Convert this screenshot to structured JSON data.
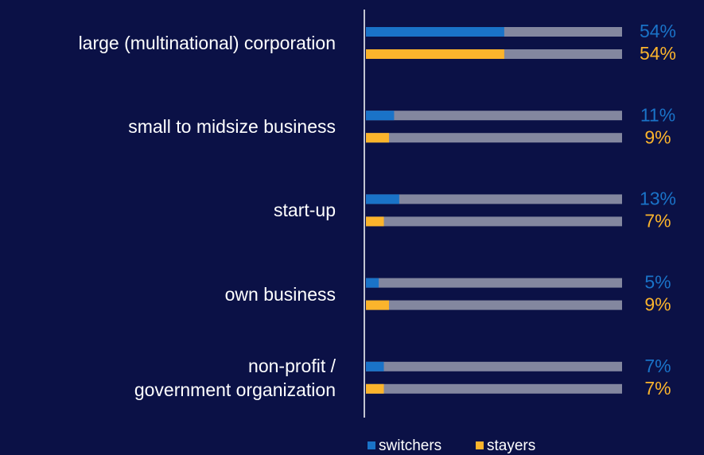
{
  "chart_data": {
    "type": "bar",
    "categories": [
      "large (multinational) corporation",
      "small to midsize business",
      "start-up",
      "own business",
      "non-profit /\ngovernment organization"
    ],
    "series": [
      {
        "name": "switchers",
        "color": "#1a73c8",
        "values": [
          54,
          11,
          13,
          5,
          7
        ],
        "value_labels": [
          "54%",
          "11%",
          "13%",
          "5%",
          "7%"
        ]
      },
      {
        "name": "stayers",
        "color": "#fbb42c",
        "values": [
          54,
          9,
          7,
          9,
          7
        ],
        "value_labels": [
          "54%",
          "9%",
          "7%",
          "9%",
          "7%"
        ]
      }
    ],
    "xlim": [
      0,
      100
    ],
    "track_color": "#83879f",
    "legend": "bottom"
  }
}
